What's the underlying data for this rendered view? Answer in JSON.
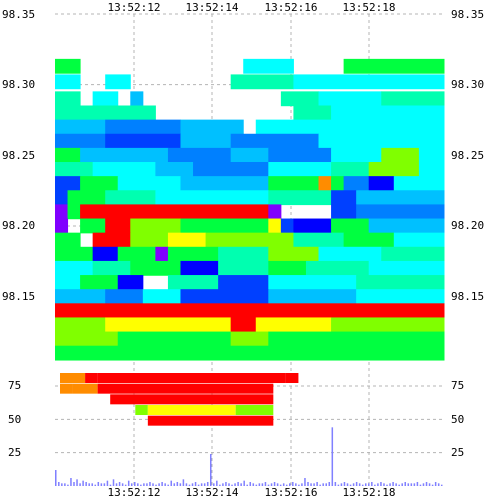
{
  "chart_data": {
    "type": "heatmap",
    "title": "",
    "xlabel": "",
    "ylabel": "",
    "x_ticks": [
      "13:52:12",
      "13:52:14",
      "13:52:16",
      "13:52:18"
    ],
    "price_ticks": [
      "98.35",
      "98.30",
      "98.25",
      "98.20",
      "98.15"
    ],
    "price_ylim": [
      98.11,
      98.35
    ],
    "volume_ticks": [
      "75",
      "50",
      "25"
    ],
    "volume_ylim": [
      0,
      100
    ],
    "grid": true,
    "colorscale": [
      "#ff0000",
      "#ff8c00",
      "#ffff00",
      "#80ff00",
      "#00ff40",
      "#00ffb0",
      "#00ffff",
      "#00c0ff",
      "#0080ff",
      "#0040ff",
      "#0000ff",
      "#8000ff"
    ],
    "price_bands": [
      {
        "price": 98.313,
        "segments": [
          {
            "from": 0,
            "to": 2,
            "c": 4
          },
          {
            "from": 15,
            "to": 19,
            "c": 6
          },
          {
            "from": 23,
            "to": 31,
            "c": 4
          }
        ]
      },
      {
        "price": 98.302,
        "segments": [
          {
            "from": 0,
            "to": 2,
            "c": 6
          },
          {
            "from": 4,
            "to": 6,
            "c": 6
          },
          {
            "from": 14,
            "to": 19,
            "c": 5
          },
          {
            "from": 19,
            "to": 31,
            "c": 6
          }
        ]
      },
      {
        "price": 98.29,
        "segments": [
          {
            "from": 0,
            "to": 2,
            "c": 5
          },
          {
            "from": 3,
            "to": 5,
            "c": 6
          },
          {
            "from": 6,
            "to": 7,
            "c": 7
          },
          {
            "from": 18,
            "to": 21,
            "c": 5
          },
          {
            "from": 21,
            "to": 26,
            "c": 6
          },
          {
            "from": 26,
            "to": 31,
            "c": 5
          }
        ]
      },
      {
        "price": 98.28,
        "segments": [
          {
            "from": 0,
            "to": 8,
            "c": 5
          },
          {
            "from": 19,
            "to": 22,
            "c": 5
          },
          {
            "from": 22,
            "to": 31,
            "c": 6
          }
        ]
      },
      {
        "price": 98.27,
        "segments": [
          {
            "from": 0,
            "to": 4,
            "c": 7
          },
          {
            "from": 4,
            "to": 10,
            "c": 8
          },
          {
            "from": 10,
            "to": 15,
            "c": 7
          },
          {
            "from": 16,
            "to": 31,
            "c": 6
          }
        ]
      },
      {
        "price": 98.26,
        "segments": [
          {
            "from": 0,
            "to": 4,
            "c": 8
          },
          {
            "from": 4,
            "to": 10,
            "c": 9
          },
          {
            "from": 10,
            "to": 14,
            "c": 7
          },
          {
            "from": 14,
            "to": 21,
            "c": 8
          },
          {
            "from": 21,
            "to": 31,
            "c": 6
          }
        ]
      },
      {
        "price": 98.25,
        "segments": [
          {
            "from": 0,
            "to": 2,
            "c": 4
          },
          {
            "from": 2,
            "to": 9,
            "c": 7
          },
          {
            "from": 9,
            "to": 14,
            "c": 8
          },
          {
            "from": 14,
            "to": 17,
            "c": 7
          },
          {
            "from": 17,
            "to": 22,
            "c": 8
          },
          {
            "from": 22,
            "to": 26,
            "c": 6
          },
          {
            "from": 26,
            "to": 29,
            "c": 3
          },
          {
            "from": 29,
            "to": 31,
            "c": 6
          }
        ]
      },
      {
        "price": 98.24,
        "segments": [
          {
            "from": 0,
            "to": 3,
            "c": 5
          },
          {
            "from": 3,
            "to": 8,
            "c": 6
          },
          {
            "from": 8,
            "to": 11,
            "c": 7
          },
          {
            "from": 11,
            "to": 17,
            "c": 8
          },
          {
            "from": 17,
            "to": 22,
            "c": 6
          },
          {
            "from": 22,
            "to": 25,
            "c": 5
          },
          {
            "from": 25,
            "to": 29,
            "c": 3
          },
          {
            "from": 29,
            "to": 31,
            "c": 6
          }
        ]
      },
      {
        "price": 98.23,
        "segments": [
          {
            "from": 0,
            "to": 2,
            "c": 9
          },
          {
            "from": 2,
            "to": 5,
            "c": 4
          },
          {
            "from": 5,
            "to": 10,
            "c": 6
          },
          {
            "from": 10,
            "to": 17,
            "c": 7
          },
          {
            "from": 17,
            "to": 21,
            "c": 4
          },
          {
            "from": 21,
            "to": 22,
            "c": 1
          },
          {
            "from": 22,
            "to": 23,
            "c": 4
          },
          {
            "from": 23,
            "to": 25,
            "c": 8
          },
          {
            "from": 25,
            "to": 27,
            "c": 10
          },
          {
            "from": 27,
            "to": 31,
            "c": 6
          }
        ]
      },
      {
        "price": 98.22,
        "segments": [
          {
            "from": 0,
            "to": 1,
            "c": 9
          },
          {
            "from": 1,
            "to": 4,
            "c": 4
          },
          {
            "from": 4,
            "to": 8,
            "c": 5
          },
          {
            "from": 8,
            "to": 17,
            "c": 6
          },
          {
            "from": 17,
            "to": 22,
            "c": 5
          },
          {
            "from": 22,
            "to": 24,
            "c": 9
          },
          {
            "from": 24,
            "to": 31,
            "c": 7
          }
        ]
      },
      {
        "price": 98.21,
        "segments": [
          {
            "from": 0,
            "to": 1,
            "c": 11
          },
          {
            "from": 1,
            "to": 2,
            "c": 4
          },
          {
            "from": 2,
            "to": 4,
            "c": 0
          },
          {
            "from": 4,
            "to": 17,
            "c": 0
          },
          {
            "from": 17,
            "to": 18,
            "c": 11
          },
          {
            "from": 22,
            "to": 24,
            "c": 9
          },
          {
            "from": 24,
            "to": 31,
            "c": 8
          }
        ]
      },
      {
        "price": 98.2,
        "segments": [
          {
            "from": 0,
            "to": 1,
            "c": 11
          },
          {
            "from": 2,
            "to": 4,
            "c": 4
          },
          {
            "from": 4,
            "to": 6,
            "c": 0
          },
          {
            "from": 6,
            "to": 10,
            "c": 3
          },
          {
            "from": 10,
            "to": 17,
            "c": 4
          },
          {
            "from": 17,
            "to": 18,
            "c": 2
          },
          {
            "from": 18,
            "to": 19,
            "c": 9
          },
          {
            "from": 19,
            "to": 22,
            "c": 10
          },
          {
            "from": 22,
            "to": 25,
            "c": 4
          },
          {
            "from": 25,
            "to": 31,
            "c": 7
          }
        ]
      },
      {
        "price": 98.19,
        "segments": [
          {
            "from": 0,
            "to": 2,
            "c": 4
          },
          {
            "from": 3,
            "to": 6,
            "c": 0
          },
          {
            "from": 6,
            "to": 9,
            "c": 3
          },
          {
            "from": 9,
            "to": 12,
            "c": 2
          },
          {
            "from": 12,
            "to": 17,
            "c": 3
          },
          {
            "from": 17,
            "to": 19,
            "c": 3
          },
          {
            "from": 19,
            "to": 23,
            "c": 5
          },
          {
            "from": 23,
            "to": 27,
            "c": 4
          },
          {
            "from": 27,
            "to": 31,
            "c": 6
          }
        ]
      },
      {
        "price": 98.18,
        "segments": [
          {
            "from": 0,
            "to": 3,
            "c": 4
          },
          {
            "from": 3,
            "to": 5,
            "c": 10
          },
          {
            "from": 5,
            "to": 8,
            "c": 4
          },
          {
            "from": 8,
            "to": 9,
            "c": 11
          },
          {
            "from": 9,
            "to": 13,
            "c": 4
          },
          {
            "from": 13,
            "to": 17,
            "c": 5
          },
          {
            "from": 17,
            "to": 21,
            "c": 3
          },
          {
            "from": 21,
            "to": 26,
            "c": 6
          },
          {
            "from": 26,
            "to": 31,
            "c": 5
          }
        ]
      },
      {
        "price": 98.17,
        "segments": [
          {
            "from": 0,
            "to": 3,
            "c": 6
          },
          {
            "from": 3,
            "to": 6,
            "c": 5
          },
          {
            "from": 6,
            "to": 10,
            "c": 4
          },
          {
            "from": 10,
            "to": 13,
            "c": 10
          },
          {
            "from": 13,
            "to": 17,
            "c": 5
          },
          {
            "from": 17,
            "to": 20,
            "c": 4
          },
          {
            "from": 20,
            "to": 25,
            "c": 5
          },
          {
            "from": 25,
            "to": 31,
            "c": 6
          }
        ]
      },
      {
        "price": 98.16,
        "segments": [
          {
            "from": 0,
            "to": 2,
            "c": 6
          },
          {
            "from": 2,
            "to": 5,
            "c": 4
          },
          {
            "from": 5,
            "to": 7,
            "c": 10
          },
          {
            "from": 9,
            "to": 13,
            "c": 5
          },
          {
            "from": 13,
            "to": 17,
            "c": 9
          },
          {
            "from": 17,
            "to": 24,
            "c": 6
          },
          {
            "from": 24,
            "to": 31,
            "c": 5
          }
        ]
      },
      {
        "price": 98.15,
        "segments": [
          {
            "from": 0,
            "to": 4,
            "c": 7
          },
          {
            "from": 4,
            "to": 7,
            "c": 8
          },
          {
            "from": 7,
            "to": 10,
            "c": 6
          },
          {
            "from": 10,
            "to": 17,
            "c": 9
          },
          {
            "from": 17,
            "to": 24,
            "c": 7
          },
          {
            "from": 24,
            "to": 31,
            "c": 6
          }
        ]
      },
      {
        "price": 98.14,
        "segments": [
          {
            "from": 0,
            "to": 31,
            "c": 0
          }
        ]
      },
      {
        "price": 98.13,
        "segments": [
          {
            "from": 0,
            "to": 4,
            "c": 3
          },
          {
            "from": 4,
            "to": 14,
            "c": 2
          },
          {
            "from": 14,
            "to": 16,
            "c": 0
          },
          {
            "from": 16,
            "to": 22,
            "c": 2
          },
          {
            "from": 22,
            "to": 31,
            "c": 3
          }
        ]
      },
      {
        "price": 98.12,
        "segments": [
          {
            "from": 0,
            "to": 5,
            "c": 3
          },
          {
            "from": 5,
            "to": 14,
            "c": 4
          },
          {
            "from": 14,
            "to": 17,
            "c": 3
          },
          {
            "from": 17,
            "to": 24,
            "c": 4
          },
          {
            "from": 24,
            "to": 31,
            "c": 4
          }
        ]
      },
      {
        "price": 98.11,
        "segments": [
          {
            "from": 0,
            "to": 31,
            "c": 4
          }
        ]
      }
    ],
    "volume_bands": [
      {
        "level": 81,
        "segments": [
          {
            "from": 0,
            "to": 2,
            "c": 1
          },
          {
            "from": 2,
            "to": 3,
            "c": 0
          },
          {
            "from": 3,
            "to": 18,
            "c": 0
          },
          {
            "from": 18,
            "to": 19,
            "c": 0
          }
        ]
      },
      {
        "level": 73,
        "segments": [
          {
            "from": 0,
            "to": 1,
            "c": 1
          },
          {
            "from": 1,
            "to": 3,
            "c": 1
          },
          {
            "from": 3,
            "to": 17,
            "c": 0
          }
        ]
      },
      {
        "level": 65,
        "segments": [
          {
            "from": 4,
            "to": 17,
            "c": 0
          }
        ]
      },
      {
        "level": 57,
        "segments": [
          {
            "from": 6,
            "to": 7,
            "c": 3
          },
          {
            "from": 7,
            "to": 14,
            "c": 2
          },
          {
            "from": 14,
            "to": 17,
            "c": 3
          }
        ]
      },
      {
        "level": 49,
        "segments": [
          {
            "from": 7,
            "to": 17,
            "c": 0
          }
        ]
      }
    ],
    "volume_bars": [
      12,
      3,
      2,
      2,
      1,
      6,
      3,
      5,
      2,
      4,
      3,
      2,
      2,
      1,
      3,
      2,
      2,
      4,
      1,
      5,
      2,
      3,
      2,
      1,
      4,
      2,
      3,
      2,
      1,
      2,
      2,
      3,
      2,
      1,
      2,
      3,
      2,
      1,
      4,
      2,
      3,
      2,
      5,
      2,
      1,
      2,
      3,
      1,
      2,
      2,
      3,
      24,
      2,
      4,
      1,
      2,
      3,
      2,
      1,
      2,
      3,
      2,
      4,
      1,
      3,
      2,
      1,
      2,
      2,
      3,
      1,
      2,
      3,
      2,
      1,
      2,
      1,
      2,
      3,
      2,
      1,
      2,
      6,
      3,
      2,
      2,
      3,
      1,
      2,
      2,
      3,
      44,
      3,
      1,
      2,
      3,
      2,
      1,
      2,
      3,
      2,
      1,
      2,
      2,
      3,
      1,
      2,
      3,
      2,
      1,
      2,
      3,
      2,
      1,
      2,
      3,
      2,
      2,
      2,
      3,
      1,
      2,
      3,
      2,
      1,
      3,
      2,
      1
    ]
  }
}
